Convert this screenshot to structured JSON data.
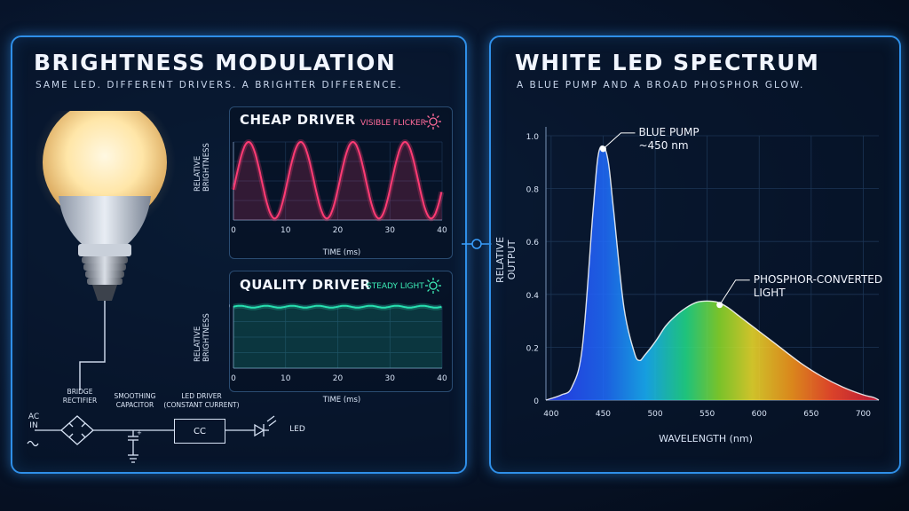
{
  "left_panel": {
    "title": "BRIGHTNESS MODULATION",
    "subtitle": "SAME LED. DIFFERENT DRIVERS. A BRIGHTER DIFFERENCE."
  },
  "right_panel": {
    "title": "WHITE LED SPECTRUM",
    "subtitle": "A BLUE PUMP AND A BROAD PHOSPHOR GLOW."
  },
  "circuit": {
    "ac_label": "AC\nIN",
    "bridge_label": "BRIDGE\nRECTIFIER",
    "capacitor_label": "SMOOTHING\nCAPACITOR",
    "driver_label": "LED DRIVER\n(CONSTANT CURRENT)",
    "driver_box_text": "CC",
    "led_label": "LED"
  },
  "colors": {
    "panel_border": "#2f8fe8",
    "cheap_wave": "#ff3b74",
    "quality_wave": "#27e0b0",
    "cheap_badge": "#ff6b9a",
    "quality_badge": "#3df0b8"
  },
  "chart_data": [
    {
      "type": "line",
      "title": "CHEAP DRIVER",
      "badge": "VISIBLE FLICKER",
      "badge_icon": "sun-icon",
      "xlabel": "TIME (ms)",
      "ylabel": "RELATIVE\nBRIGHTNESS",
      "xlim": [
        0,
        40
      ],
      "ylim": [
        0,
        1
      ],
      "x_ticks": [
        "0",
        "10",
        "20",
        "30",
        "40"
      ],
      "wave": {
        "period_ms": 10,
        "min": 0.02,
        "max": 1.0,
        "start_phase": "mid-rising"
      }
    },
    {
      "type": "line",
      "title": "QUALITY DRIVER",
      "badge": "STEADY LIGHT",
      "badge_icon": "sun-icon",
      "xlabel": "TIME (ms)",
      "ylabel": "RELATIVE\nBRIGHTNESS",
      "xlim": [
        0,
        40
      ],
      "ylim": [
        0,
        1.0
      ],
      "y_ticks": [
        "1.0"
      ],
      "x_ticks": [
        "0",
        "10",
        "20",
        "30",
        "40"
      ],
      "wave": {
        "mean": 0.99,
        "ripple": 0.015,
        "period_ms": 5
      }
    },
    {
      "type": "area",
      "title": "",
      "xlabel": "WAVELENGTH (nm)",
      "ylabel": "RELATIVE OUTPUT",
      "xlim": [
        395,
        715
      ],
      "ylim": [
        0,
        1.0
      ],
      "x_ticks": [
        "400",
        "450",
        "500",
        "550",
        "600",
        "650",
        "700"
      ],
      "y_ticks": [
        "0",
        "0.2",
        "0.4",
        "0.6",
        "0.8",
        "1.0"
      ],
      "grid": true,
      "x": [
        395,
        410,
        420,
        430,
        440,
        445,
        450,
        455,
        460,
        470,
        480,
        485,
        490,
        500,
        510,
        520,
        530,
        540,
        550,
        560,
        570,
        580,
        590,
        600,
        620,
        640,
        660,
        680,
        700,
        710,
        715
      ],
      "y": [
        0.0,
        0.02,
        0.05,
        0.2,
        0.7,
        0.92,
        0.96,
        0.9,
        0.72,
        0.35,
        0.18,
        0.15,
        0.17,
        0.22,
        0.28,
        0.32,
        0.35,
        0.37,
        0.375,
        0.37,
        0.35,
        0.32,
        0.29,
        0.26,
        0.2,
        0.14,
        0.09,
        0.05,
        0.02,
        0.01,
        0.0
      ],
      "annotations": [
        {
          "text": "BLUE PUMP\n~450 nm",
          "x": 450,
          "y": 0.95
        },
        {
          "text": "PHOSPHOR-CONVERTED\nLIGHT",
          "x": 562,
          "y": 0.36
        }
      ]
    }
  ]
}
